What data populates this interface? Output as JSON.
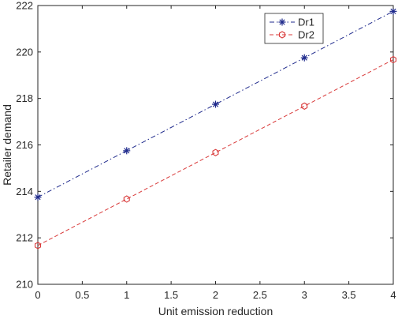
{
  "chart_data": {
    "type": "line",
    "title": "",
    "xlabel": "Unit emission reduction",
    "ylabel": "Retailer demand",
    "xlim": [
      0,
      4
    ],
    "ylim": [
      210,
      222
    ],
    "xticks": [
      0,
      0.5,
      1,
      1.5,
      2,
      2.5,
      3,
      3.5,
      4
    ],
    "yticks": [
      210,
      212,
      214,
      216,
      218,
      220,
      222
    ],
    "xtick_labels": [
      "0",
      "0.5",
      "1",
      "1.5",
      "2",
      "2.5",
      "3",
      "3.5",
      "4"
    ],
    "ytick_labels": [
      "210",
      "212",
      "214",
      "216",
      "218",
      "220",
      "222"
    ],
    "x": [
      0,
      1,
      2,
      3,
      4
    ],
    "grid": false,
    "legend_position": "top-right",
    "series": [
      {
        "name": "Dr1",
        "values": [
          213.75,
          215.75,
          217.75,
          219.75,
          221.75
        ],
        "color": "#1f2a8c",
        "line_style": "dash-dot",
        "marker": "asterisk"
      },
      {
        "name": "Dr2",
        "values": [
          211.67,
          213.67,
          215.67,
          217.67,
          219.67
        ],
        "color": "#d93a3a",
        "line_style": "dashed",
        "marker": "hexagon"
      }
    ]
  }
}
